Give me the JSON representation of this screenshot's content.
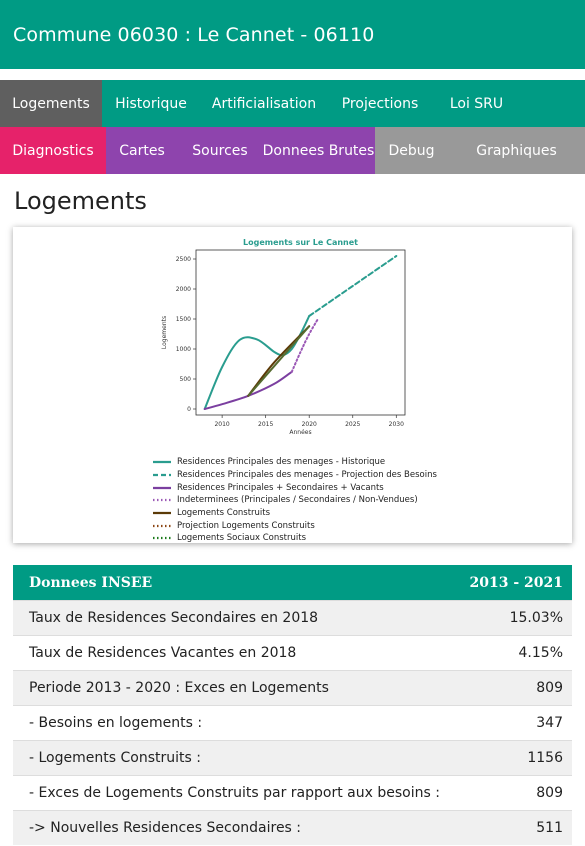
{
  "header": {
    "title": "Commune 06030 : Le Cannet - 06110"
  },
  "nav_row1": [
    {
      "label": "Logements",
      "bg": "#5f5f5f",
      "w": 102
    },
    {
      "label": "Historique",
      "bg": "#009b84",
      "w": 98
    },
    {
      "label": "Artificialisation",
      "bg": "#009b84",
      "w": 128
    },
    {
      "label": "Projections",
      "bg": "#009b84",
      "w": 104
    },
    {
      "label": "Loi SRU",
      "bg": "#009b84",
      "w": 89
    }
  ],
  "nav_row2": [
    {
      "label": "Diagnostics",
      "bg": "#e6226a"
    },
    {
      "label": "Cartes",
      "bg": "#8e44ad"
    },
    {
      "label": "Sources",
      "bg": "#8e44ad"
    },
    {
      "label": "Donnees Brutes",
      "bg": "#8e44ad"
    },
    {
      "label": "Debug",
      "bg": "#999999"
    },
    {
      "label": "Graphiques",
      "bg": "#999999"
    }
  ],
  "page_title": "Logements",
  "chart_data": {
    "type": "line",
    "title": "Logements sur Le Cannet",
    "xlabel": "Années",
    "ylabel": "Logements",
    "xlim": [
      2007,
      2031
    ],
    "ylim": [
      -100,
      2650
    ],
    "xticks": [
      2010,
      2015,
      2020,
      2025,
      2030
    ],
    "yticks": [
      0,
      500,
      1000,
      1500,
      2000,
      2500
    ],
    "series": [
      {
        "name": "Residences Principales des menages - Historique",
        "color": "#2a9d8f",
        "style": "solid",
        "x": [
          2008,
          2010,
          2012,
          2014,
          2016,
          2017,
          2018,
          2019,
          2020
        ],
        "y": [
          0,
          700,
          1150,
          1160,
          950,
          900,
          1000,
          1250,
          1550
        ]
      },
      {
        "name": "Residences Principales des menages - Projection des Besoins",
        "color": "#2a9d8f",
        "style": "dashed",
        "x": [
          2020,
          2025,
          2030
        ],
        "y": [
          1550,
          2050,
          2550
        ]
      },
      {
        "name": "Residences Principales + Secondaires + Vacants",
        "color": "#7b3fa0",
        "style": "solid",
        "x": [
          2008,
          2010,
          2013,
          2016,
          2018
        ],
        "y": [
          0,
          80,
          220,
          420,
          620
        ]
      },
      {
        "name": "Indeterminees (Principales / Secondaires / Non-Vendues)",
        "color": "#9b59b6",
        "style": "dotted",
        "x": [
          2018,
          2019,
          2020,
          2021
        ],
        "y": [
          620,
          950,
          1250,
          1500
        ]
      },
      {
        "name": "Logements Construits",
        "color": "#5b3a07",
        "style": "solid",
        "x": [
          2013,
          2016,
          2020
        ],
        "y": [
          220,
          780,
          1380
        ]
      },
      {
        "name": "Projection Logements Construits",
        "color": "#8b4513",
        "style": "dotted",
        "x": [],
        "y": []
      },
      {
        "name": "Logements Sociaux Construits",
        "color": "#1a7a1a",
        "style": "dotted",
        "x": [],
        "y": []
      }
    ],
    "overlap_line": {
      "color": "#556b2f",
      "x": [
        2013,
        2020
      ],
      "y": [
        220,
        1380
      ]
    }
  },
  "table": {
    "header_label": "Donnees INSEE",
    "header_period": "2013 - 2021",
    "rows": [
      {
        "label": "Taux de Residences Secondaires en 2018",
        "value": "15.03%"
      },
      {
        "label": "Taux de Residences Vacantes en 2018",
        "value": "4.15%"
      },
      {
        "label": "Periode 2013 - 2020 : Exces en Logements",
        "value": "809"
      },
      {
        "label": "- Besoins en logements :",
        "value": "347"
      },
      {
        "label": "- Logements Construits :",
        "value": "1156"
      },
      {
        "label": "- Exces de Logements Construits par rapport aux besoins :",
        "value": "809"
      },
      {
        "label": "-> Nouvelles Residences Secondaires :",
        "value": "511"
      }
    ]
  }
}
